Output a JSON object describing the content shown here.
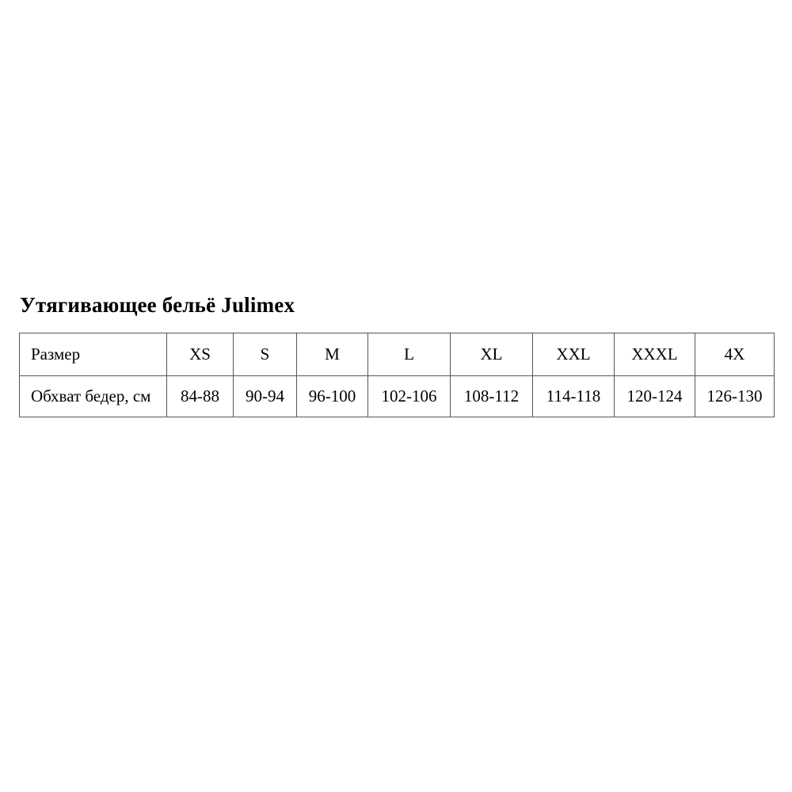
{
  "page": {
    "title": "Утягивающее бельё Julimex"
  },
  "table": {
    "headers": [
      "Размер",
      "XS",
      "S",
      "M",
      "L",
      "XL",
      "XXL",
      "XXXL",
      "4X"
    ],
    "rows": [
      [
        "Обхват бедер, см",
        "84-88",
        "90-94",
        "96-100",
        "102-106",
        "108-112",
        "114-118",
        "120-124",
        "126-130"
      ]
    ]
  },
  "colors": {
    "background": "#ffffff",
    "text": "#000000",
    "table_border": "#565656"
  }
}
